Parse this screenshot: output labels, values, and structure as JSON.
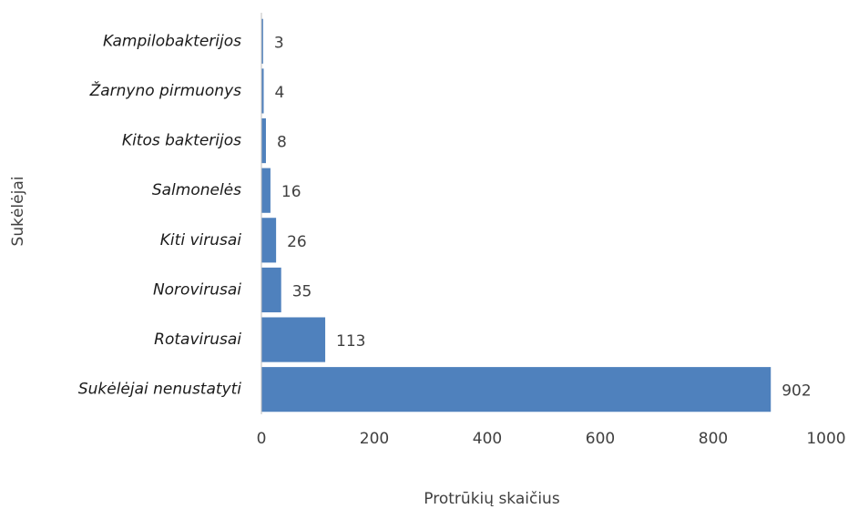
{
  "chart_data": {
    "type": "bar",
    "orientation": "horizontal",
    "categories": [
      "Kampilobakterijos",
      "Žarnyno pirmuonys",
      "Kitos bakterijos",
      "Salmonelės",
      "Kiti virusai",
      "Norovirusai",
      "Rotavirusai",
      "Sukėlėjai nenustatyti"
    ],
    "values": [
      3,
      4,
      8,
      16,
      26,
      35,
      113,
      902
    ],
    "color": "#4f81bd",
    "xlim": [
      0,
      1000
    ],
    "xticks": [
      0,
      200,
      400,
      600,
      800,
      1000
    ],
    "xlabel": "Protrūkių skaičius",
    "ylabel": "Sukėlėjai",
    "grid": false
  }
}
